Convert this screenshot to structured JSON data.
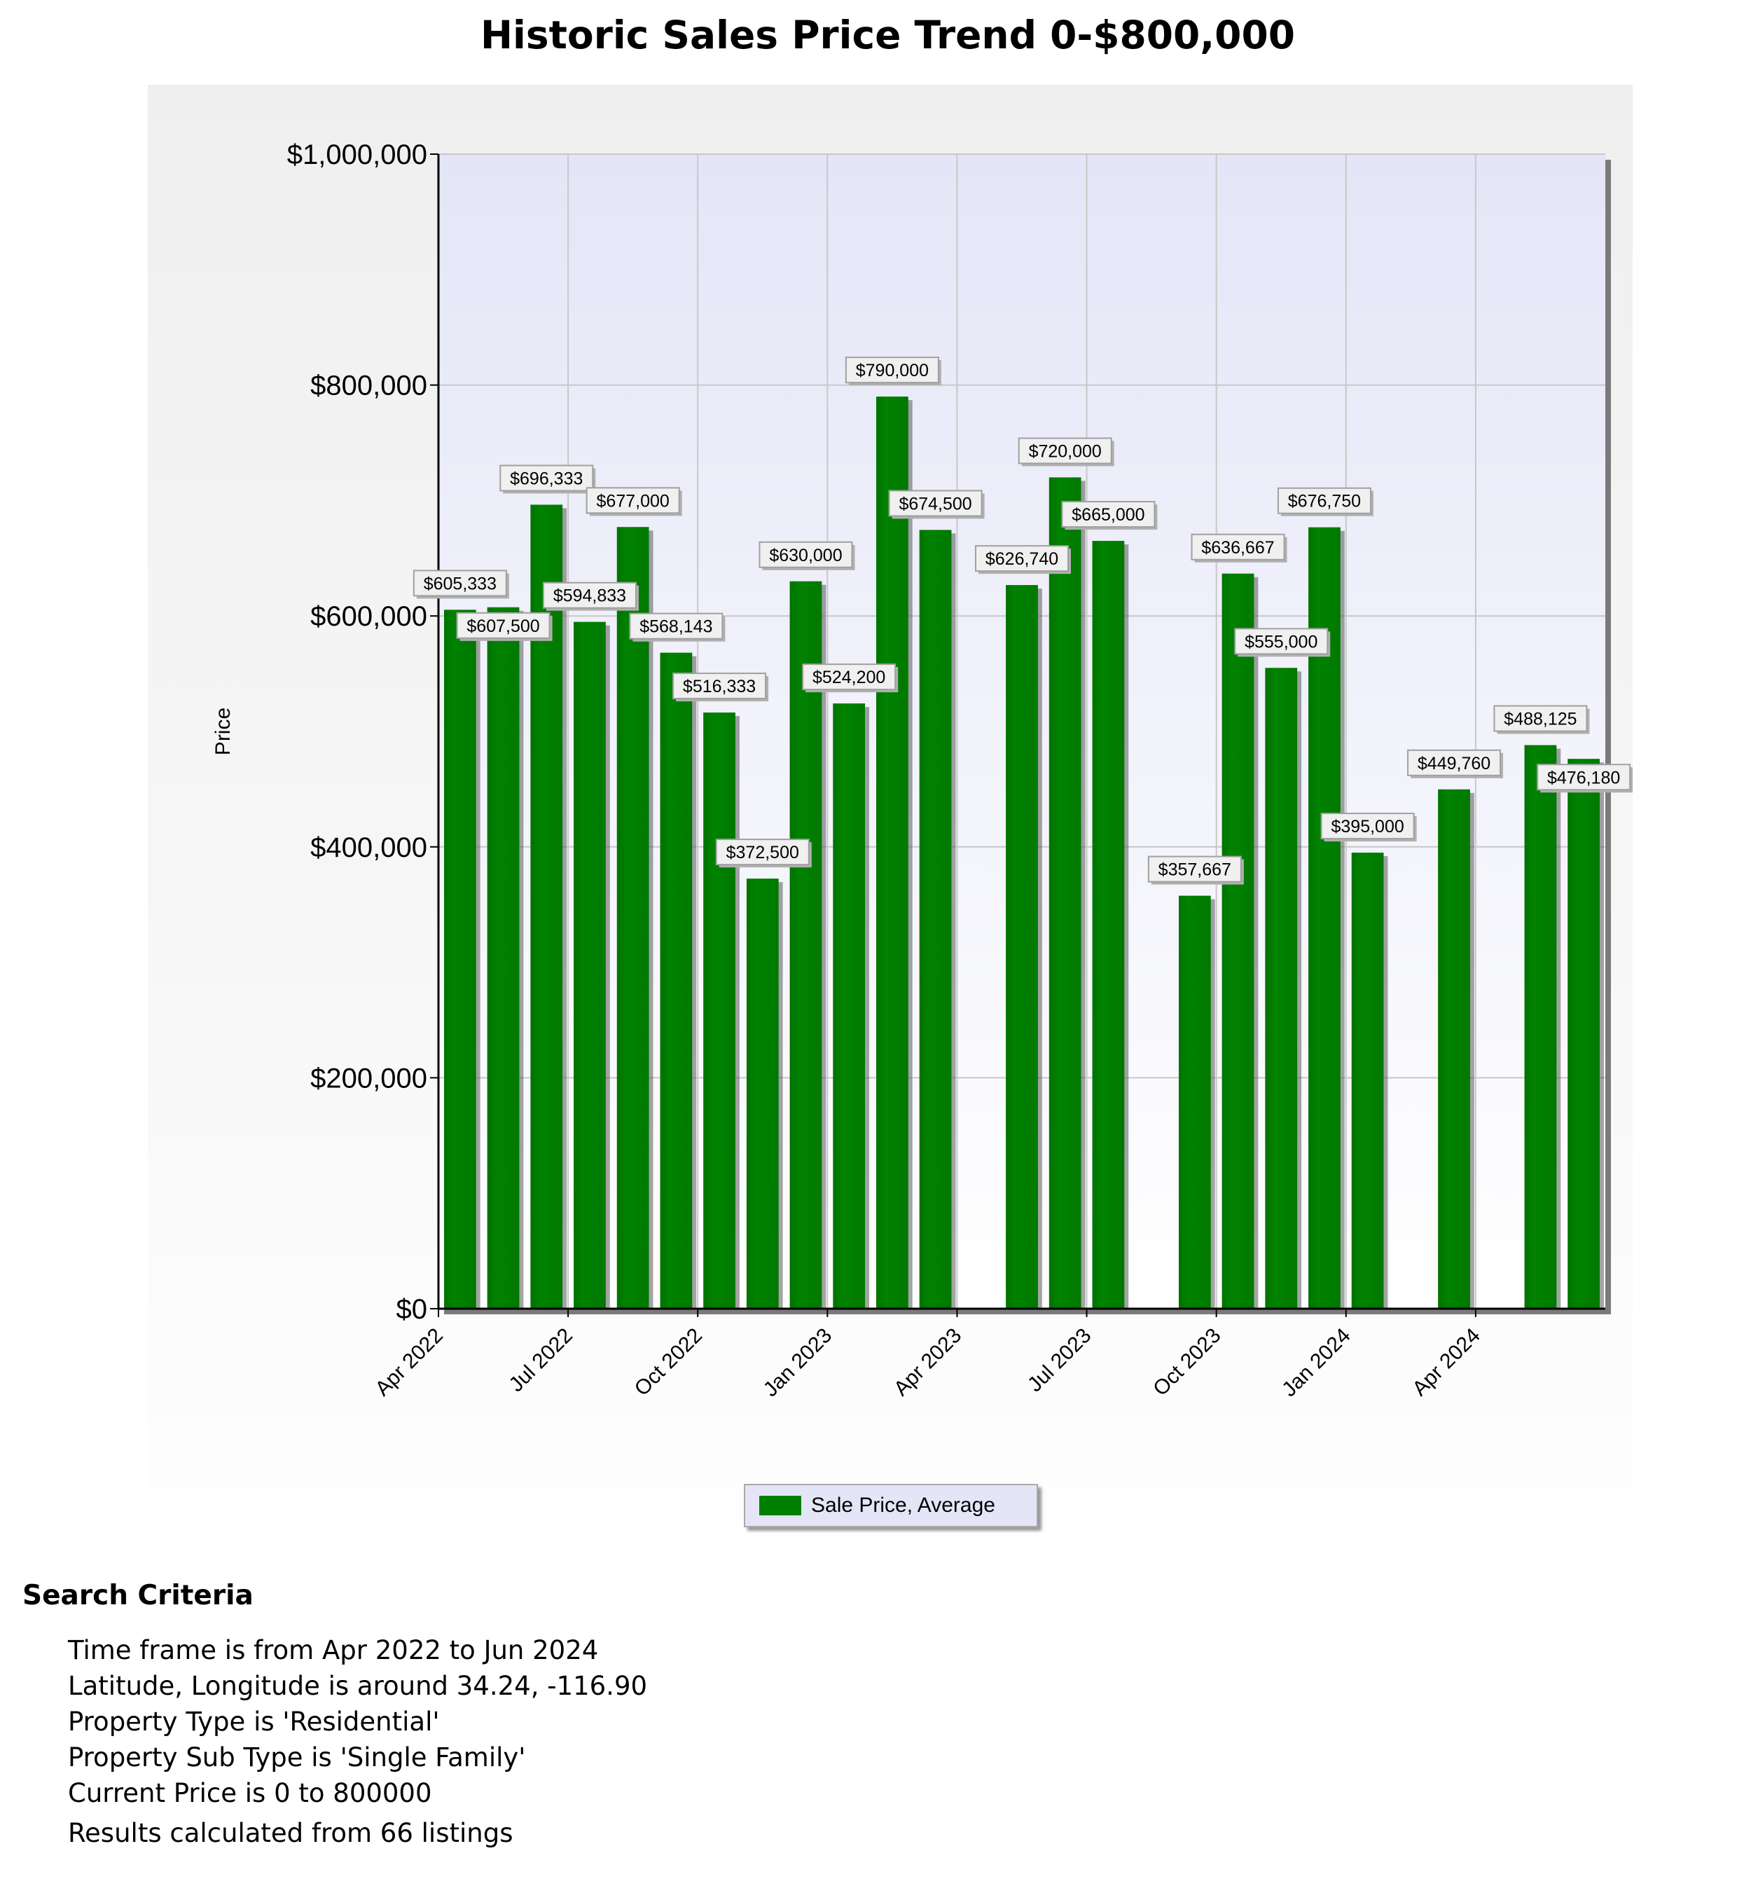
{
  "title": "Historic Sales Price Trend 0-$800,000",
  "colors": {
    "bar": "#007f00",
    "plot_bg_top": "#e4e6f7",
    "plot_bg_bottom": "#ffffff",
    "grid": "#c8c8c8",
    "label_bg": "#f0f0f0",
    "label_border": "#a0a0a0"
  },
  "chart_data": {
    "type": "bar",
    "title": "Historic Sales Price Trend 0-$800,000",
    "xlabel": "",
    "ylabel": "Price",
    "ylim": [
      0,
      1000000
    ],
    "yticks": [
      {
        "value": 0,
        "label": "$0"
      },
      {
        "value": 200000,
        "label": "$200,000"
      },
      {
        "value": 400000,
        "label": "$400,000"
      },
      {
        "value": 600000,
        "label": "$600,000"
      },
      {
        "value": 800000,
        "label": "$800,000"
      },
      {
        "value": 1000000,
        "label": "$1,000,000"
      }
    ],
    "xticks": [
      {
        "index": 0,
        "label": "Apr 2022"
      },
      {
        "index": 3,
        "label": "Jul 2022"
      },
      {
        "index": 6,
        "label": "Oct 2022"
      },
      {
        "index": 9,
        "label": "Jan 2023"
      },
      {
        "index": 12,
        "label": "Apr 2023"
      },
      {
        "index": 15,
        "label": "Jul 2023"
      },
      {
        "index": 18,
        "label": "Oct 2023"
      },
      {
        "index": 21,
        "label": "Jan 2024"
      },
      {
        "index": 24,
        "label": "Apr 2024"
      }
    ],
    "grid": true,
    "legend_position": "bottom-center",
    "categories": [
      "Apr 2022",
      "May 2022",
      "Jun 2022",
      "Jul 2022",
      "Aug 2022",
      "Sep 2022",
      "Oct 2022",
      "Nov 2022",
      "Dec 2022",
      "Jan 2023",
      "Feb 2023",
      "Mar 2023",
      "Apr 2023",
      "May 2023",
      "Jun 2023",
      "Jul 2023",
      "Aug 2023",
      "Sep 2023",
      "Oct 2023",
      "Nov 2023",
      "Dec 2023",
      "Jan 2024",
      "Feb 2024",
      "Mar 2024",
      "Apr 2024",
      "May 2024",
      "Jun 2024"
    ],
    "series": [
      {
        "name": "Sale Price, Average",
        "values": [
          605333,
          607500,
          696333,
          594833,
          677000,
          568143,
          516333,
          372500,
          630000,
          524200,
          790000,
          674500,
          null,
          626740,
          720000,
          665000,
          null,
          357667,
          636667,
          555000,
          676750,
          395000,
          null,
          449760,
          null,
          488125,
          476180
        ],
        "labels": [
          "$605,333",
          "$607,500",
          "$696,333",
          "$594,833",
          "$677,000",
          "$568,143",
          "$516,333",
          "$372,500",
          "$630,000",
          "$524,200",
          "$790,000",
          "$674,500",
          null,
          "$626,740",
          "$720,000",
          "$665,000",
          null,
          "$357,667",
          "$636,667",
          "$555,000",
          "$676,750",
          "$395,000",
          null,
          "$449,760",
          null,
          "$488,125",
          "$476,180"
        ]
      }
    ]
  },
  "legend": {
    "label": "Sale Price, Average"
  },
  "criteria": {
    "heading": "Search Criteria",
    "items": [
      "Time frame is from Apr 2022 to Jun 2024",
      "Latitude, Longitude is around 34.24, -116.90",
      "Property Type is 'Residential'",
      "Property Sub Type is 'Single Family'",
      "Current Price is 0 to 800000"
    ],
    "results": "Results calculated from 66 listings"
  }
}
